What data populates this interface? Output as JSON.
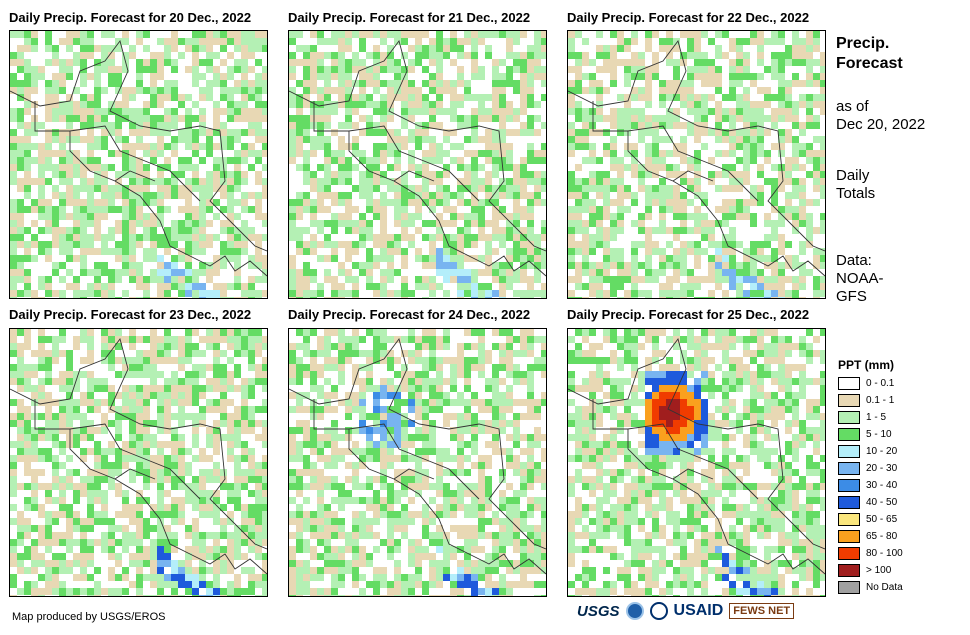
{
  "panels": [
    {
      "title": "Daily Precip. Forecast for 20 Dec., 2022",
      "forecast_date": "20 Dec., 2022"
    },
    {
      "title": "Daily Precip. Forecast for 21 Dec., 2022",
      "forecast_date": "21 Dec., 2022"
    },
    {
      "title": "Daily Precip. Forecast for 22 Dec., 2022",
      "forecast_date": "22 Dec., 2022"
    },
    {
      "title": "Daily Precip. Forecast for 23 Dec., 2022",
      "forecast_date": "23 Dec., 2022"
    },
    {
      "title": "Daily Precip. Forecast for 24 Dec., 2022",
      "forecast_date": "24 Dec., 2022"
    },
    {
      "title": "Daily Precip. Forecast for 25 Dec., 2022",
      "forecast_date": "25 Dec., 2022"
    }
  ],
  "sidebar": {
    "heading_line1": "Precip.",
    "heading_line2": "Forecast",
    "asof_line1": "as of",
    "asof_line2": "Dec 20, 2022",
    "totals_line1": "Daily",
    "totals_line2": "Totals",
    "data_line1": "Data:",
    "data_line2": "NOAA-",
    "data_line3": "GFS"
  },
  "legend": {
    "title": "PPT (mm)",
    "items": [
      {
        "label": "0 - 0.1",
        "color": "#ffffff"
      },
      {
        "label": "0.1 - 1",
        "color": "#e8d8b4"
      },
      {
        "label": "1 - 5",
        "color": "#b4f0b4"
      },
      {
        "label": "5 - 10",
        "color": "#64dc64"
      },
      {
        "label": "10 - 20",
        "color": "#b4eefa"
      },
      {
        "label": "20 - 30",
        "color": "#78b4f0"
      },
      {
        "label": "30 - 40",
        "color": "#3c8ce6"
      },
      {
        "label": "40 - 50",
        "color": "#1e5adc"
      },
      {
        "label": "50 - 65",
        "color": "#fae67d"
      },
      {
        "label": "65 - 80",
        "color": "#faa01e"
      },
      {
        "label": "80 - 100",
        "color": "#f03c00"
      },
      {
        "label": "> 100",
        "color": "#a01e1e"
      },
      {
        "label": "No Data",
        "color": "#a0a0a0"
      }
    ]
  },
  "footer": {
    "credit": "Map produced by USGS/EROS",
    "logo_usgs": "USGS",
    "logo_usaid": "USAID",
    "logo_fews": "FEWS NET"
  }
}
